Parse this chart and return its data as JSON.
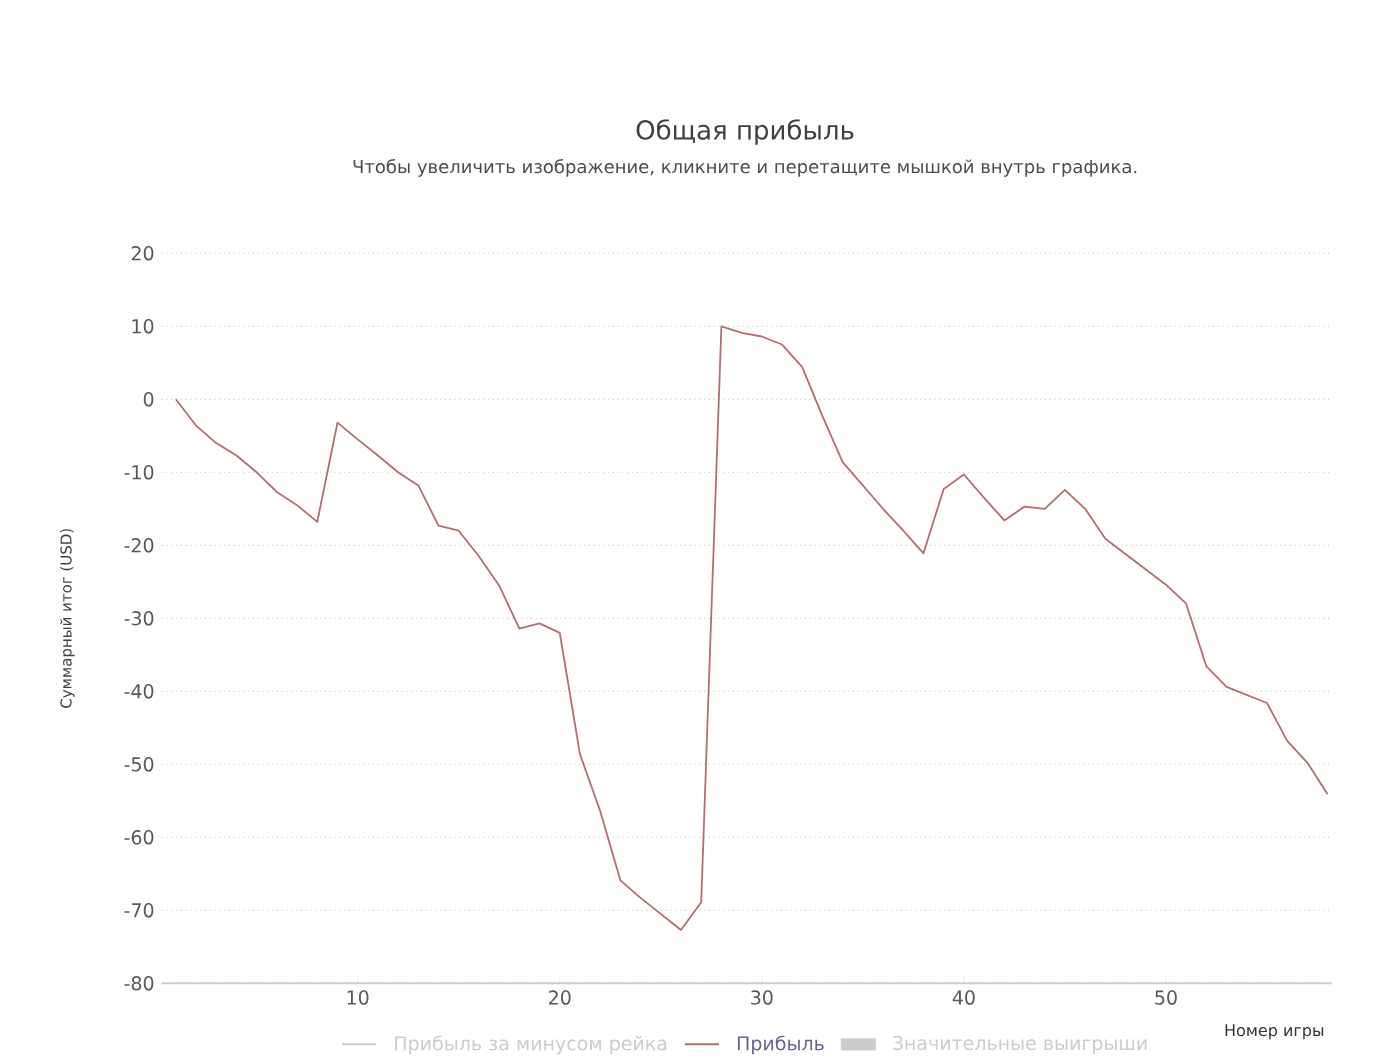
{
  "chart_data": {
    "type": "line",
    "title": "Общая прибыль",
    "subtitle": "Чтобы увеличить изображение, кликните и перетащите мышкой внутрь графика.",
    "xlabel": "Номер игры",
    "ylabel": "Суммарный итог (USD)",
    "x": [
      1,
      2,
      3,
      4,
      5,
      6,
      7,
      8,
      9,
      10,
      11,
      12,
      13,
      14,
      15,
      16,
      17,
      18,
      19,
      20,
      21,
      22,
      23,
      24,
      25,
      26,
      27,
      28,
      29,
      30,
      31,
      32,
      33,
      34,
      35,
      36,
      37,
      38,
      39,
      40,
      41,
      42,
      43,
      44,
      45,
      46,
      47,
      48,
      49,
      50,
      51,
      52,
      53,
      54,
      55,
      56,
      57,
      58
    ],
    "series": [
      {
        "name": "Прибыль за минусом рейка",
        "color": "#cccccc",
        "values": [
          null,
          null,
          null,
          null,
          null,
          null,
          null,
          null,
          null,
          null,
          null,
          null,
          null,
          null,
          null,
          null,
          null,
          null,
          null,
          null,
          null,
          null,
          null,
          null,
          null,
          null,
          null,
          null,
          null,
          null,
          null,
          null,
          null,
          null,
          null,
          null,
          null,
          null,
          null,
          null,
          null,
          null,
          null,
          null,
          null,
          null,
          null,
          null,
          null,
          null,
          null,
          null,
          null,
          null,
          null,
          null,
          null,
          null
        ]
      },
      {
        "name": "Прибыль",
        "color": "#b07070",
        "values": [
          0,
          -3.6,
          -6,
          -7.7,
          -10,
          -12.7,
          -14.5,
          -16.8,
          -3.2,
          -5.5,
          -7.7,
          -10,
          -11.8,
          -17.3,
          -18,
          -21.5,
          -25.5,
          -31.4,
          -30.7,
          -32,
          -48.6,
          -56.4,
          -65.9,
          -68.3,
          -70.5,
          -72.7,
          -68.9,
          10,
          9.1,
          8.6,
          7.5,
          4.4,
          -2.3,
          -8.6,
          -11.8,
          -15,
          -18,
          -21.1,
          -12.3,
          -10.3,
          -13.5,
          -16.6,
          -14.7,
          -15,
          -12.4,
          -15,
          -19.1,
          -21.2,
          -23.3,
          -25.4,
          -28,
          -36.6,
          -39.4,
          -40.5,
          -41.6,
          -46.8,
          -49.8,
          -54.1
        ]
      },
      {
        "name": "Значительные выигрыши",
        "type": "bar",
        "color": "#cccccc",
        "values": [
          null,
          null,
          null,
          null,
          null,
          null,
          null,
          null,
          null,
          null,
          null,
          null,
          null,
          null,
          null,
          null,
          null,
          null,
          null,
          null,
          null,
          null,
          null,
          null,
          null,
          null,
          null,
          null,
          null,
          null,
          null,
          null,
          null,
          null,
          null,
          null,
          null,
          null,
          null,
          null,
          null,
          null,
          null,
          null,
          null,
          null,
          null,
          null,
          null,
          null,
          null,
          null,
          null,
          null,
          null,
          null,
          null,
          null
        ]
      }
    ],
    "xlim": [
      0.3,
      58.2
    ],
    "ylim": [
      -80,
      20
    ],
    "xticks": [
      10,
      20,
      30,
      40,
      50
    ],
    "yticks": [
      -80,
      -70,
      -60,
      -50,
      -40,
      -30,
      -20,
      -10,
      0,
      10,
      20
    ],
    "grid": "y",
    "legend": "bottom",
    "marker": "none",
    "line_style": "solid"
  }
}
